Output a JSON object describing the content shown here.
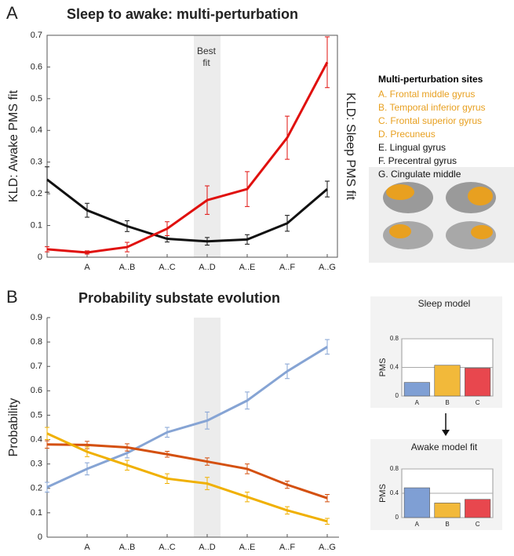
{
  "chart_data": [
    {
      "type": "line",
      "panel": "A",
      "title": "Sleep to awake: multi-perturbation",
      "y_label": "KLD: Awake PMS fit",
      "y2_label": "KLD: Sleep PMS fit",
      "y2_label_color": "#d0021b",
      "categories": [
        null,
        "A",
        "A..B",
        "A..C",
        "A..D",
        "A..E",
        "A..F",
        "A..G"
      ],
      "ylim": [
        0,
        0.7
      ],
      "yticks": [
        0,
        0.1,
        0.2,
        0.3,
        0.4,
        0.5,
        0.6,
        0.7
      ],
      "shade_category": 4,
      "shade_label": "Best fit",
      "series": [
        {
          "color": "#111111",
          "values": [
            0.245,
            0.148,
            0.098,
            0.058,
            0.05,
            0.056,
            0.107,
            0.215
          ],
          "errors": [
            0.04,
            0.022,
            0.017,
            0.01,
            0.012,
            0.015,
            0.025,
            0.025
          ]
        },
        {
          "color": "#e0100e",
          "values": [
            0.025,
            0.015,
            0.032,
            0.09,
            0.18,
            0.215,
            0.377,
            0.615
          ],
          "errors": [
            0.008,
            0.005,
            0.015,
            0.022,
            0.045,
            0.055,
            0.068,
            0.08
          ]
        }
      ],
      "sites_title": "Multi-perturbation sites",
      "sites": [
        {
          "text": "A. Frontal middle gyrus",
          "color": "#e8a020"
        },
        {
          "text": "B. Temporal inferior gyrus",
          "color": "#e8a020"
        },
        {
          "text": "C. Frontal superior gyrus",
          "color": "#e8a020"
        },
        {
          "text": "D. Precuneus",
          "color": "#e8a020"
        },
        {
          "text": "E. Lingual gyrus",
          "color": "#111111"
        },
        {
          "text": "F. Precentral gyrus",
          "color": "#111111"
        },
        {
          "text": "G. Cingulate middle",
          "color": "#111111"
        }
      ]
    },
    {
      "type": "line",
      "panel": "B",
      "title": "Probability substate evolution",
      "y_label": "Probability",
      "categories": [
        null,
        "A",
        "A..B",
        "A..C",
        "A..D",
        "A..E",
        "A..F",
        "A..G"
      ],
      "ylim": [
        0,
        0.9
      ],
      "yticks": [
        0,
        0.1,
        0.2,
        0.3,
        0.4,
        0.5,
        0.6,
        0.7,
        0.8,
        0.9
      ],
      "shade_category": 4,
      "series": [
        {
          "color": "#86a4d4",
          "values": [
            0.205,
            0.28,
            0.345,
            0.43,
            0.478,
            0.56,
            0.68,
            0.78
          ],
          "errors": [
            0.02,
            0.025,
            0.02,
            0.02,
            0.035,
            0.035,
            0.03,
            0.03
          ]
        },
        {
          "color": "#d4500f",
          "values": [
            0.38,
            0.378,
            0.368,
            0.34,
            0.31,
            0.28,
            0.215,
            0.16
          ],
          "errors": [
            0.015,
            0.015,
            0.015,
            0.012,
            0.015,
            0.02,
            0.015,
            0.015
          ]
        },
        {
          "color": "#f0b000",
          "values": [
            0.425,
            0.35,
            0.295,
            0.24,
            0.22,
            0.165,
            0.11,
            0.065
          ],
          "errors": [
            0.025,
            0.02,
            0.02,
            0.02,
            0.025,
            0.02,
            0.015,
            0.012
          ]
        }
      ]
    },
    {
      "type": "bar",
      "title": "Sleep model",
      "y_label": "PMS",
      "categories": [
        "A",
        "B",
        "C"
      ],
      "values": [
        0.19,
        0.43,
        0.39
      ],
      "colors": [
        "#7f9fd4",
        "#f2b93a",
        "#e8474e"
      ],
      "ylim": [
        0,
        0.8
      ],
      "yticks": [
        0,
        0.4,
        0.8
      ],
      "grid": true
    },
    {
      "type": "bar",
      "title": "Awake model fit",
      "y_label": "PMS",
      "categories": [
        "A",
        "B",
        "C"
      ],
      "values": [
        0.49,
        0.24,
        0.3
      ],
      "colors": [
        "#7f9fd4",
        "#f2b93a",
        "#e8474e"
      ],
      "ylim": [
        0,
        0.8
      ],
      "yticks": [
        0,
        0.4,
        0.8
      ],
      "grid": true
    }
  ]
}
